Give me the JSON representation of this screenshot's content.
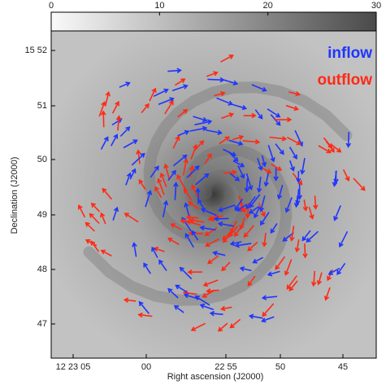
{
  "colorbar": {
    "lim": [
      0,
      30
    ],
    "ticks": [
      0,
      10,
      20,
      30
    ]
  },
  "y_axis": {
    "label": "Declination (J2000)",
    "ticks": [
      "15 52",
      "51",
      "50",
      "49",
      "48",
      "47"
    ]
  },
  "x_axis": {
    "label": "Right ascension (J2000)",
    "ticks": [
      "12 23 05",
      "00",
      "22 55",
      "50",
      "45"
    ]
  },
  "legend": [
    {
      "label": "inflow",
      "color": "#1f35ff"
    },
    {
      "label": "outflow",
      "color": "#ff2a14"
    }
  ]
}
